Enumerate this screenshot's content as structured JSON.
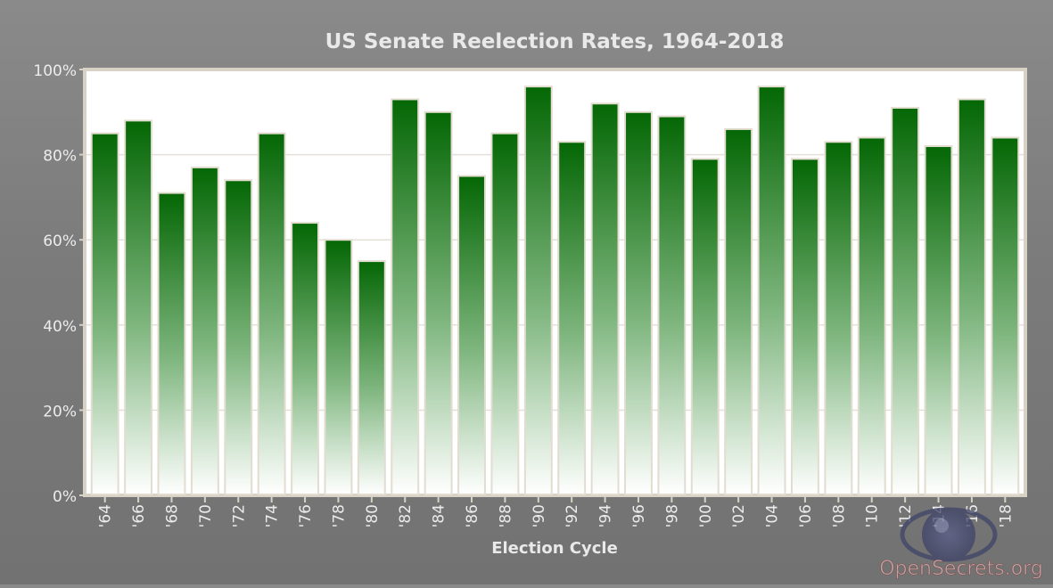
{
  "chart_data": {
    "type": "bar",
    "title": "US Senate Reelection Rates, 1964-2018",
    "xlabel": "Election Cycle",
    "ylabel": "",
    "ylim": [
      0,
      100
    ],
    "yticks": [
      0,
      20,
      40,
      60,
      80,
      100
    ],
    "ytick_suffix": "%",
    "grid": true,
    "categories": [
      "'64",
      "'66",
      "'68",
      "'70",
      "'72",
      "'74",
      "'76",
      "'78",
      "'80",
      "'82",
      "'84",
      "'86",
      "'88",
      "'90",
      "'92",
      "'94",
      "'96",
      "'98",
      "'00",
      "'02",
      "'04",
      "'06",
      "'08",
      "'10",
      "'12",
      "'14",
      "'16",
      "'18"
    ],
    "values": [
      85,
      88,
      71,
      77,
      74,
      85,
      64,
      60,
      55,
      93,
      90,
      75,
      85,
      96,
      83,
      92,
      90,
      89,
      79,
      86,
      96,
      79,
      83,
      84,
      91,
      82,
      93,
      84
    ],
    "bar_color_top": "#046704",
    "bar_color_bottom": "#ffffff"
  },
  "watermark": {
    "text": "OpenSecrets.org",
    "icon": "eye-icon"
  }
}
